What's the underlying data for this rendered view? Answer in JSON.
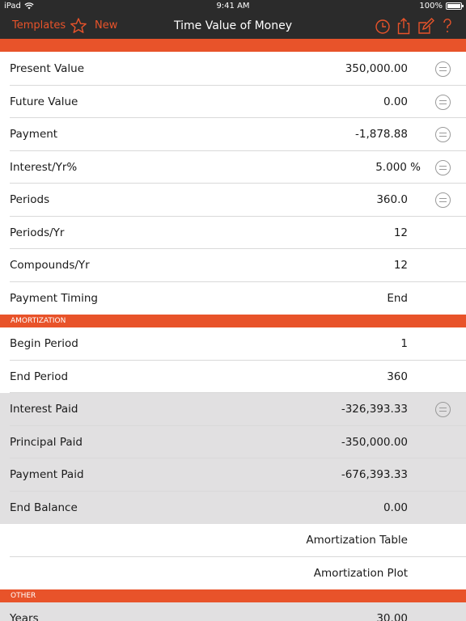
{
  "status_bar": {
    "device": "iPad",
    "time": "9:41 AM",
    "battery": "100%"
  },
  "nav": {
    "templates_label": "Templates",
    "new_label": "New",
    "title": "Time Value of Money",
    "accent_color": "#e8532a",
    "bar_color": "#2b2b2b"
  },
  "main_rows": [
    {
      "label": "Present Value",
      "value": "350,000.00",
      "has_clear": true
    },
    {
      "label": "Future Value",
      "value": "0.00",
      "has_clear": true
    },
    {
      "label": "Payment",
      "value": "-1,878.88",
      "has_clear": true
    },
    {
      "label": "Interest/Yr%",
      "value": "5.000 %",
      "has_clear": true
    },
    {
      "label": "Periods",
      "value": "360.0",
      "has_clear": true
    },
    {
      "label": "Periods/Yr",
      "value": "12",
      "has_clear": false
    },
    {
      "label": "Compounds/Yr",
      "value": "12",
      "has_clear": false
    },
    {
      "label": "Payment Timing",
      "value": "End",
      "has_clear": false
    }
  ],
  "amortization": {
    "header": "AMORTIZATION",
    "rows": [
      {
        "label": "Begin Period",
        "value": "1"
      },
      {
        "label": "End Period",
        "value": "360"
      },
      {
        "label": "Interest Paid",
        "value": "-326,393.33"
      },
      {
        "label": "Principal Paid",
        "value": "-350,000.00"
      },
      {
        "label": "Payment Paid",
        "value": "-676,393.33"
      },
      {
        "label": "End Balance",
        "value": "0.00"
      }
    ],
    "table_link": "Amortization Table",
    "plot_link": "Amortization Plot"
  },
  "other": {
    "header": "OTHER",
    "rows": [
      {
        "label": "Years",
        "value": "30.00"
      }
    ]
  }
}
